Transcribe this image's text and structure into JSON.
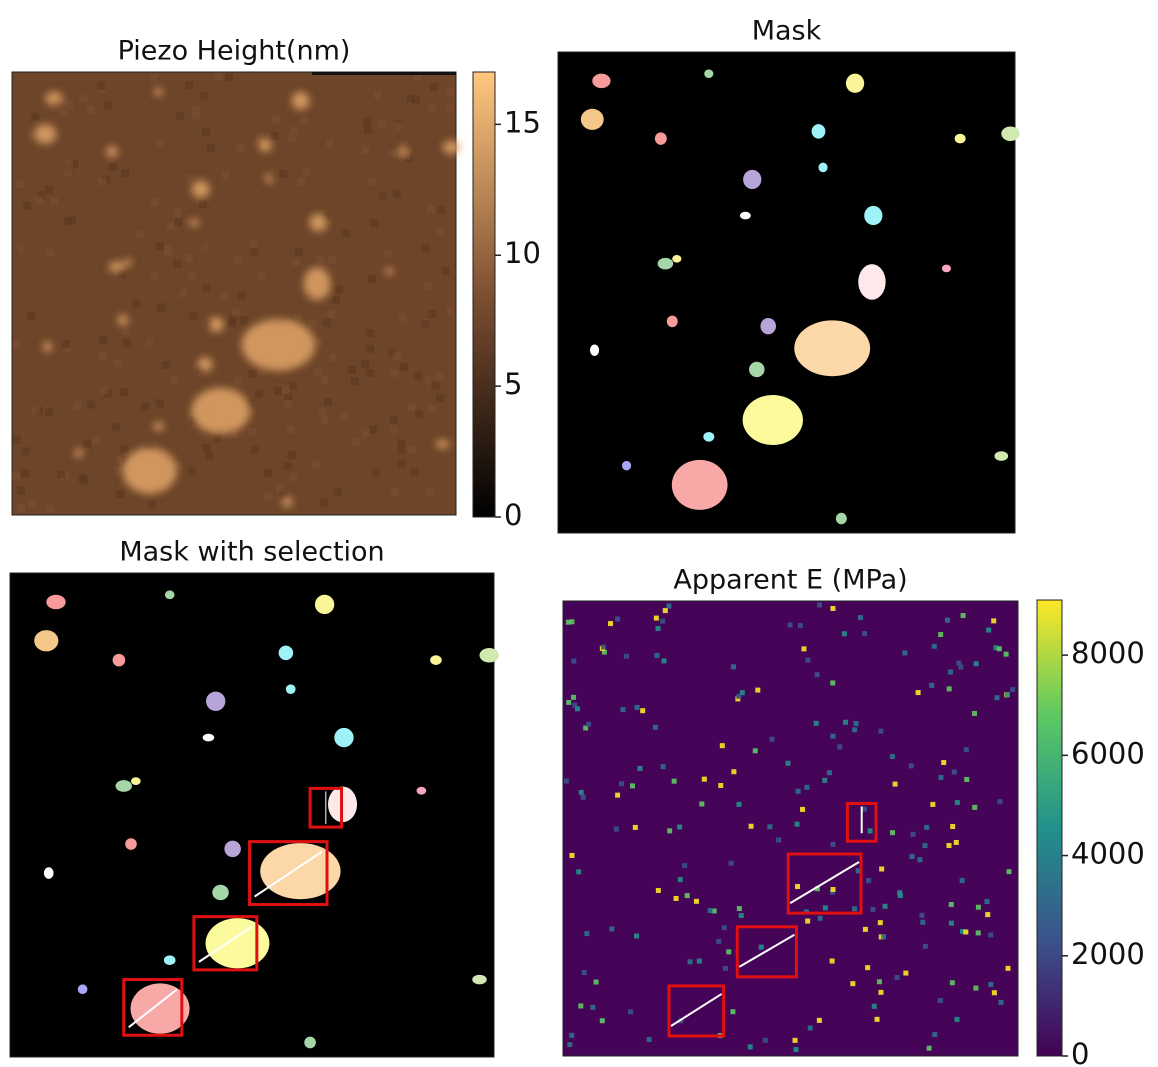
{
  "chart_data": [
    {
      "type": "image",
      "title": "Piezo Height(nm)",
      "colorbar": {
        "lim": [
          0,
          17
        ],
        "ticks": [
          0,
          5,
          10,
          15
        ]
      }
    },
    {
      "type": "image",
      "title": "Mask"
    },
    {
      "type": "image",
      "title": "Mask with selection"
    },
    {
      "type": "image",
      "title": "Apparent E (MPa)",
      "colorbar": {
        "lim": [
          0,
          9100
        ],
        "ticks": [
          0,
          2000,
          4000,
          6000,
          8000
        ]
      }
    }
  ]
}
